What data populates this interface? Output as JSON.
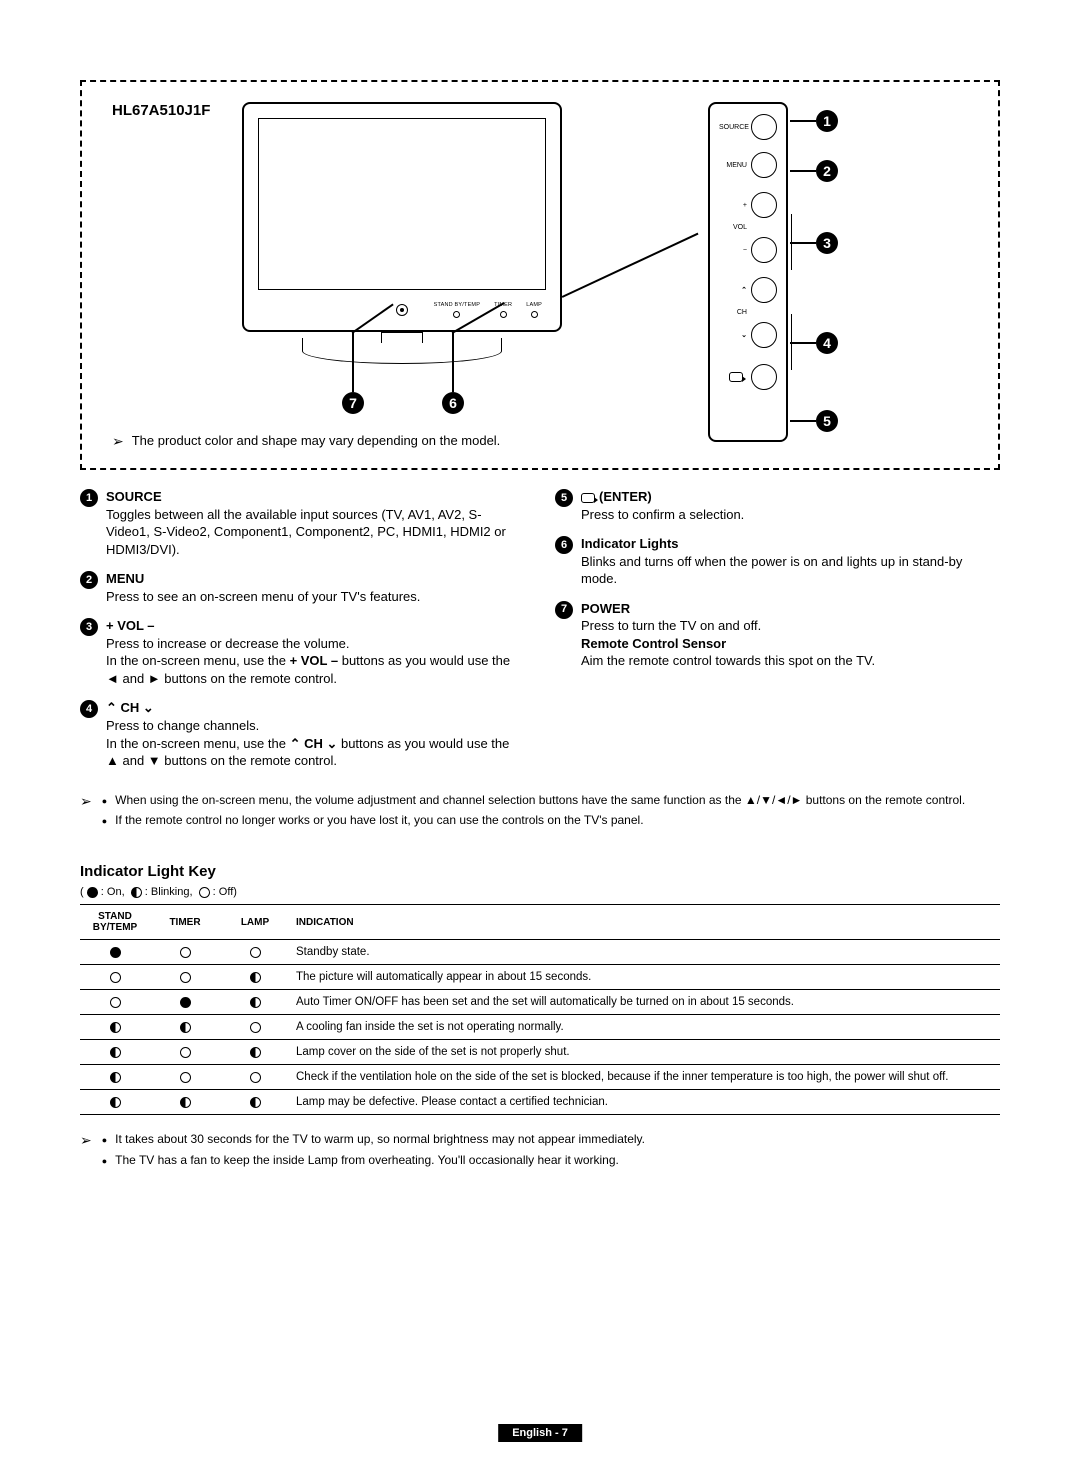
{
  "model": "HL67A510J1F",
  "diagram": {
    "note": "The product color and shape may vary depending on the model.",
    "indicator_labels": [
      "STAND BY/TEMP",
      "TIMER",
      "LAMP"
    ],
    "panel_labels": {
      "source": "SOURCE",
      "menu": "MENU",
      "vol": "VOL",
      "ch": "CH",
      "plus": "+",
      "minus": "−",
      "up": "⌃",
      "down": "⌄",
      "enter": "↵"
    }
  },
  "controls_left": [
    {
      "num": "1",
      "title": "SOURCE",
      "desc": "Toggles between all the available input sources (TV, AV1, AV2, S-Video1, S-Video2, Component1, Component2, PC, HDMI1, HDMI2 or HDMI3/DVI)."
    },
    {
      "num": "2",
      "title": "MENU",
      "desc": "Press to see an on-screen menu of your TV's features."
    },
    {
      "num": "3",
      "title": "+ VOL –",
      "desc": "Press to increase or decrease the volume.\nIn the on-screen menu, use the + VOL – buttons as you would use the ◄ and ► buttons on the remote control."
    },
    {
      "num": "4",
      "title": "⌃ CH ⌄",
      "desc": "Press to change channels.\nIn the on-screen menu, use the ⌃ CH ⌄ buttons as you would use the ▲ and ▼ buttons on the remote control."
    }
  ],
  "controls_right": [
    {
      "num": "5",
      "title_prefix_icon": true,
      "title": "(ENTER)",
      "desc": "Press to confirm a selection."
    },
    {
      "num": "6",
      "title": "Indicator Lights",
      "desc": "Blinks and turns off when the power is on and lights up in stand-by mode."
    },
    {
      "num": "7",
      "title": "POWER",
      "desc": "Press to turn the TV on and off.",
      "subtitle": "Remote Control Sensor",
      "subdesc": "Aim the remote control towards this spot on the TV."
    }
  ],
  "mid_notes": [
    "When using the on-screen menu, the volume adjustment and channel selection buttons have the same function as the ▲/▼/◄/► buttons on the remote control.",
    "If the remote control no longer works or you have lost it, you can use the controls on the TV's panel."
  ],
  "indicator_section": {
    "title": "Indicator Light Key",
    "legend": "( ● : On,  ◐ : Blinking,  ○ : Off)",
    "headers": [
      "Stand By/Temp",
      "Timer",
      "Lamp",
      "Indication"
    ],
    "rows": [
      {
        "s": "on",
        "t": "off",
        "l": "off",
        "txt": "Standby state."
      },
      {
        "s": "off",
        "t": "off",
        "l": "blink",
        "txt": "The picture will automatically appear in about 15 seconds."
      },
      {
        "s": "off",
        "t": "on",
        "l": "blink",
        "txt": "Auto Timer ON/OFF has been set and the set will automatically be turned on in about 15 seconds."
      },
      {
        "s": "blink",
        "t": "blink",
        "l": "off",
        "txt": "A cooling fan inside the set is not operating normally."
      },
      {
        "s": "blink",
        "t": "off",
        "l": "blink",
        "txt": "Lamp cover on the side of the set is not properly shut."
      },
      {
        "s": "blink",
        "t": "off",
        "l": "off",
        "txt": "Check if the ventilation hole on the side of the set is blocked, because if the inner temperature is too high, the power will shut off."
      },
      {
        "s": "blink",
        "t": "blink",
        "l": "blink",
        "txt": "Lamp may be defective. Please contact a certified technician."
      }
    ]
  },
  "bottom_notes": [
    "It takes about 30 seconds for the TV to warm up, so normal brightness may not appear immediately.",
    "The TV has a fan to keep the inside Lamp from overheating. You'll occasionally hear it working."
  ],
  "footer": "English - 7"
}
